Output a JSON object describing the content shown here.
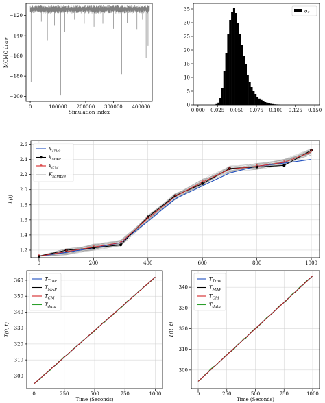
{
  "chart_data": [
    {
      "type": "line",
      "xlabel": "Simulation index",
      "ylabel": "MCMC draw",
      "xlim": [
        -15000,
        440000
      ],
      "ylim": [
        -205,
        -108
      ],
      "xticks": [
        0,
        100000,
        200000,
        300000,
        400000
      ],
      "xtick_labels": [
        "0",
        "100000",
        "200000",
        "300000",
        "400000"
      ],
      "yticks": [
        -200,
        -180,
        -160,
        -140,
        -120
      ],
      "ytick_labels": [
        "−200",
        "−180",
        "−160",
        "−140",
        "−120"
      ],
      "series": [
        {
          "color": "#808080",
          "band": [
            -118,
            -110
          ],
          "drops": [
            {
              "x": 3000,
              "y": -186
            },
            {
              "x": 40000,
              "y": -126
            },
            {
              "x": 62000,
              "y": -145
            },
            {
              "x": 88000,
              "y": -130
            },
            {
              "x": 110000,
              "y": -199
            },
            {
              "x": 125000,
              "y": -136
            },
            {
              "x": 160000,
              "y": -124
            },
            {
              "x": 195000,
              "y": -128
            },
            {
              "x": 230000,
              "y": -131
            },
            {
              "x": 262000,
              "y": -128
            },
            {
              "x": 300000,
              "y": -133
            },
            {
              "x": 330000,
              "y": -178
            },
            {
              "x": 350000,
              "y": -127
            },
            {
              "x": 385000,
              "y": -134
            },
            {
              "x": 405000,
              "y": -124
            },
            {
              "x": 418000,
              "y": -162
            },
            {
              "x": 425000,
              "y": -150
            }
          ]
        }
      ]
    },
    {
      "type": "bar",
      "legend": [
        "σ₂"
      ],
      "legend_position": "top-right",
      "xlim": [
        -0.006,
        0.156
      ],
      "ylim": [
        0,
        37
      ],
      "xticks": [
        0.0,
        0.025,
        0.05,
        0.075,
        0.1,
        0.125,
        0.15
      ],
      "xtick_labels": [
        "0.000",
        "0.025",
        "0.050",
        "0.075",
        "0.100",
        "0.125",
        "0.150"
      ],
      "yticks": [
        0,
        5,
        10,
        15,
        20,
        25,
        30,
        35
      ],
      "ytick_labels": [
        "0",
        "5",
        "10",
        "15",
        "20",
        "25",
        "30",
        "35"
      ],
      "bin_width": 0.0025,
      "bin_start": 0.0225,
      "values": [
        0.3,
        0.8,
        2.5,
        6,
        12.5,
        19,
        26,
        31,
        34,
        35.5,
        33.5,
        30,
        26,
        22,
        18,
        15,
        11,
        8.5,
        6.5,
        5,
        4,
        3,
        2.3,
        1.8,
        1.3,
        1,
        0.8,
        0.5,
        0.4,
        0.3,
        0.2,
        0.15,
        0.1
      ],
      "color": "#000000"
    },
    {
      "type": "line",
      "ylabel": "k(t)",
      "xlim": [
        -30,
        1030
      ],
      "ylim": [
        1.1,
        2.65
      ],
      "xticks": [
        0,
        200,
        400,
        600,
        800,
        1000
      ],
      "xtick_labels": [
        "0",
        "200",
        "400",
        "600",
        "800",
        "1000"
      ],
      "yticks": [
        1.2,
        1.4,
        1.6,
        1.8,
        2.0,
        2.2,
        2.4,
        2.6
      ],
      "ytick_labels": [
        "1.2",
        "1.4",
        "1.6",
        "1.8",
        "2.0",
        "2.2",
        "2.4",
        "2.6"
      ],
      "legend": [
        "k_True",
        "k_MAP",
        "k_CM",
        "K_sample"
      ],
      "legend_position": "top-left",
      "x": [
        0,
        100,
        200,
        300,
        400,
        500,
        600,
        700,
        800,
        900,
        1000
      ],
      "series": [
        {
          "name": "k_True",
          "color": "#1f4fbf",
          "values": [
            1.12,
            1.17,
            1.23,
            1.3,
            1.58,
            1.88,
            2.05,
            2.22,
            2.31,
            2.35,
            2.4
          ]
        },
        {
          "name": "k_MAP",
          "color": "#000000",
          "values": [
            1.12,
            1.2,
            1.23,
            1.27,
            1.64,
            1.92,
            2.08,
            2.28,
            2.3,
            2.32,
            2.52
          ]
        },
        {
          "name": "k_CM",
          "color": "#d62728",
          "values": [
            1.12,
            1.18,
            1.24,
            1.3,
            1.62,
            1.91,
            2.1,
            2.27,
            2.31,
            2.36,
            2.5
          ]
        }
      ]
    },
    {
      "type": "line",
      "xlabel": "Time (Seconds)",
      "ylabel": "T(0, t)",
      "xlim": [
        -60,
        1060
      ],
      "ylim": [
        292,
        366
      ],
      "xticks": [
        0,
        250,
        500,
        750,
        1000
      ],
      "xtick_labels": [
        "0",
        "250",
        "500",
        "750",
        "1000"
      ],
      "yticks": [
        300,
        310,
        320,
        330,
        340,
        350,
        360
      ],
      "ytick_labels": [
        "300",
        "310",
        "320",
        "330",
        "340",
        "350",
        "360"
      ],
      "legend": [
        "T_True",
        "T_MAP",
        "T_CM",
        "T_data"
      ],
      "legend_position": "top-left",
      "x": [
        0,
        1000
      ],
      "series": [
        {
          "name": "T_True",
          "color": "#1f4fbf",
          "values": [
            295,
            362
          ]
        },
        {
          "name": "T_MAP",
          "color": "#000000",
          "values": [
            295,
            362
          ]
        },
        {
          "name": "T_CM",
          "color": "#d62728",
          "values": [
            295,
            362
          ]
        },
        {
          "name": "T_data",
          "color": "#2ca02c",
          "values": [
            295,
            362
          ]
        }
      ]
    },
    {
      "type": "line",
      "xlabel": "Time (Seconds)",
      "ylabel": "T(R, t)",
      "xlim": [
        -60,
        1060
      ],
      "ylim": [
        291,
        348
      ],
      "xticks": [
        0,
        250,
        500,
        750,
        1000
      ],
      "xtick_labels": [
        "0",
        "250",
        "500",
        "750",
        "1000"
      ],
      "yticks": [
        300,
        310,
        320,
        330,
        340
      ],
      "ytick_labels": [
        "300",
        "310",
        "320",
        "330",
        "340"
      ],
      "legend": [
        "T_True",
        "T_MAP",
        "T_CM",
        "T_data"
      ],
      "legend_position": "top-left",
      "x": [
        0,
        1000
      ],
      "series": [
        {
          "name": "T_True",
          "color": "#1f4fbf",
          "values": [
            294.5,
            345.5
          ]
        },
        {
          "name": "T_MAP",
          "color": "#000000",
          "values": [
            294.5,
            345.5
          ]
        },
        {
          "name": "T_CM",
          "color": "#d62728",
          "values": [
            294.5,
            345.5
          ]
        },
        {
          "name": "T_data",
          "color": "#2ca02c",
          "values": [
            294.5,
            345.5
          ]
        }
      ]
    }
  ]
}
